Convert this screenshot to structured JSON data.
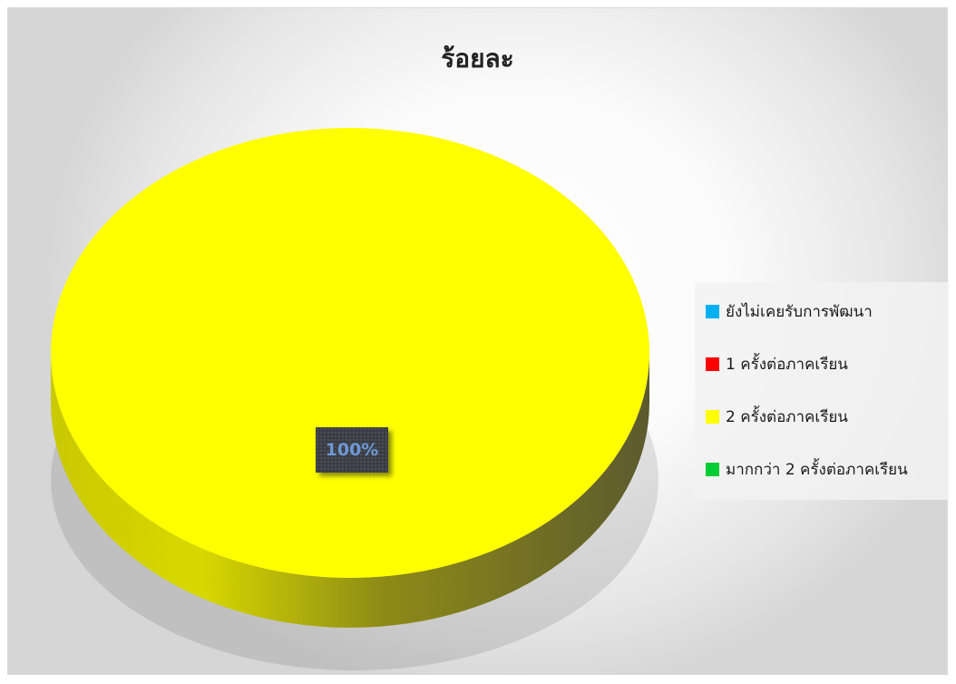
{
  "chart_data": {
    "type": "pie",
    "title": "ร้อยละ",
    "categories": [
      "ยังไม่เคยรับการพัฒนา",
      "1 ครั้งต่อภาคเรียน",
      "2 ครั้งต่อภาคเรียน",
      "มากกว่า 2 ครั้งต่อภาคเรียน"
    ],
    "values": [
      0,
      0,
      100,
      0
    ],
    "colors": [
      "#00b0f0",
      "#ff0000",
      "#ffff00",
      "#00cc33"
    ],
    "data_labels": [
      "100%"
    ],
    "legend_position": "right",
    "style": "3d"
  }
}
